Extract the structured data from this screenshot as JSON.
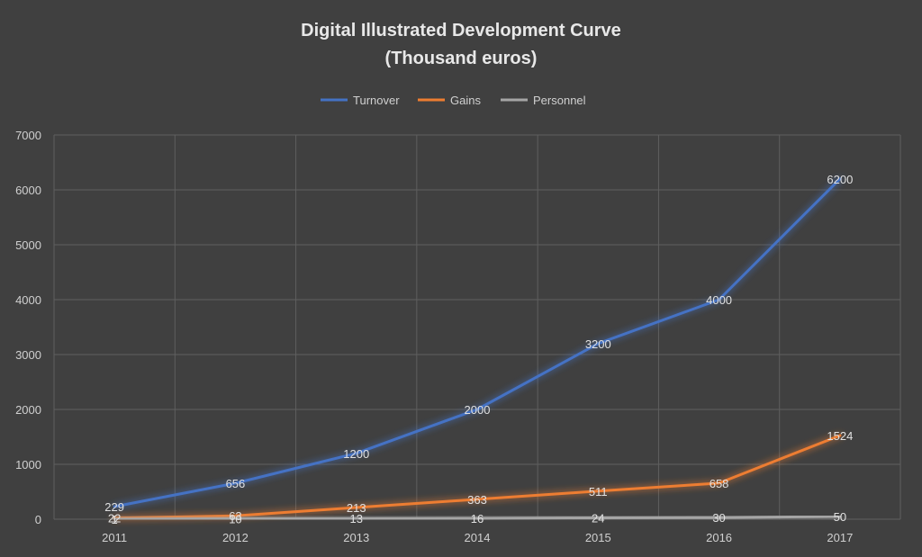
{
  "chart_data": {
    "type": "line",
    "title": "Digital  Illustrated Development Curve",
    "subtitle": "(Thousand euros)",
    "categories": [
      "2011",
      "2012",
      "2013",
      "2014",
      "2015",
      "2016",
      "2017"
    ],
    "series": [
      {
        "name": "Turnover",
        "color": "#4472c4",
        "values": [
          229,
          656,
          1200,
          2000,
          3200,
          4000,
          6200
        ]
      },
      {
        "name": "Gains",
        "color": "#ed7d31",
        "values": [
          22,
          63,
          213,
          363,
          511,
          658,
          1524
        ]
      },
      {
        "name": "Personnel",
        "color": "#a5a5a5",
        "values": [
          1,
          10,
          13,
          16,
          24,
          30,
          50
        ]
      }
    ],
    "ylim": [
      0,
      7000
    ],
    "yticks": [
      0,
      1000,
      2000,
      3000,
      4000,
      5000,
      6000,
      7000
    ],
    "grid": true,
    "legend": "top-center",
    "data_labels": true
  }
}
